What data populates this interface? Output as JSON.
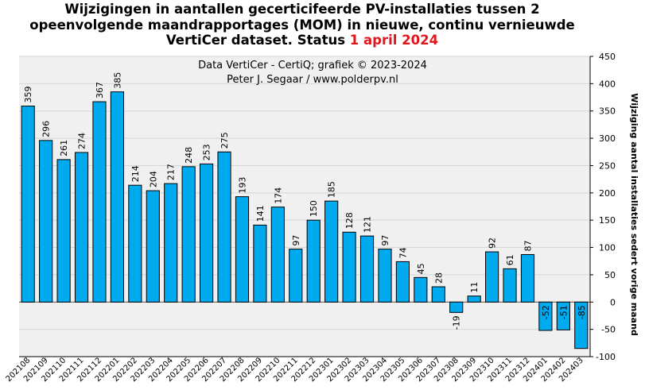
{
  "title": {
    "line1": "Wijzigingen  in aantallen gecerticifeerde PV-installaties  tussen 2",
    "line2": "opeenvolgende maandrapportages (MOM) in nieuwe, continu vernieuwde",
    "line3_prefix": "VertiCer dataset. Status ",
    "line3_highlight": "1 april 2024"
  },
  "credits": {
    "line1": "Data VertiCer  - CertiQ; grafiek © 2023-2024",
    "line2": "Peter J. Segaar / www.polderpv.nl"
  },
  "colors": {
    "bar": "#00aaee",
    "bar_stroke": "#000000",
    "plot_background": "#f0f0f0",
    "title_highlight": "#e0161d"
  },
  "chart_data": {
    "type": "bar",
    "ylabel": "Wijziging aantal installaties sedert vorige maand",
    "ylim": [
      -100,
      450
    ],
    "yticks": [
      -100,
      -50,
      0,
      50,
      100,
      150,
      200,
      250,
      300,
      350,
      400,
      450
    ],
    "y_axis_side": "right",
    "grid": true,
    "categories": [
      "202108",
      "202109",
      "202110",
      "202111",
      "202112",
      "202201",
      "202202",
      "202203",
      "202204",
      "202205",
      "202206",
      "202207",
      "202208",
      "202209",
      "202210",
      "202211",
      "202212",
      "202301",
      "202302",
      "202303",
      "202304",
      "202305",
      "202306",
      "202307",
      "202308",
      "202309",
      "202310",
      "202311",
      "202312",
      "202401",
      "202402",
      "202403"
    ],
    "values": [
      359,
      296,
      261,
      274,
      367,
      385,
      214,
      204,
      217,
      248,
      253,
      275,
      193,
      141,
      174,
      97,
      150,
      185,
      128,
      121,
      97,
      74,
      45,
      28,
      -19,
      11,
      92,
      61,
      87,
      -52,
      -51,
      -85
    ]
  }
}
